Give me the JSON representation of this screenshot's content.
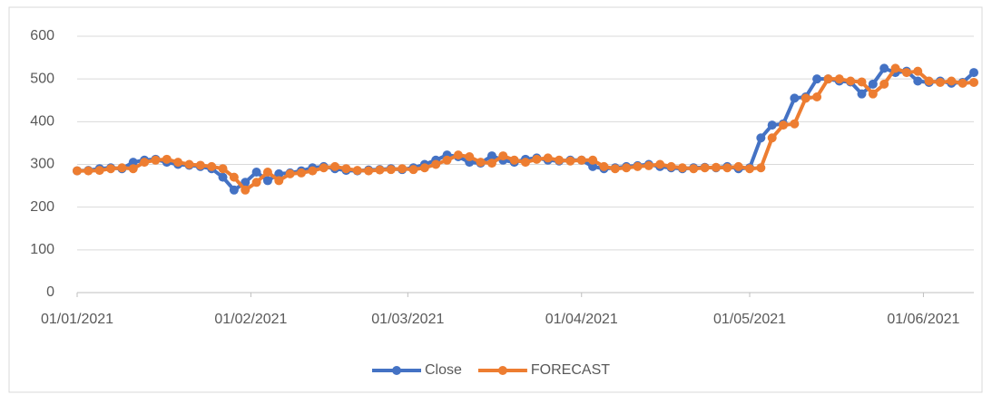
{
  "chart_data": {
    "type": "line",
    "x": [
      "2021-01-01",
      "2021-01-03",
      "2021-01-05",
      "2021-01-07",
      "2021-01-09",
      "2021-01-11",
      "2021-01-13",
      "2021-01-15",
      "2021-01-17",
      "2021-01-19",
      "2021-01-21",
      "2021-01-23",
      "2021-01-25",
      "2021-01-27",
      "2021-01-29",
      "2021-01-31",
      "2021-02-02",
      "2021-02-04",
      "2021-02-06",
      "2021-02-08",
      "2021-02-10",
      "2021-02-12",
      "2021-02-14",
      "2021-02-16",
      "2021-02-18",
      "2021-02-20",
      "2021-02-22",
      "2021-02-24",
      "2021-02-26",
      "2021-02-28",
      "2021-03-02",
      "2021-03-04",
      "2021-03-06",
      "2021-03-08",
      "2021-03-10",
      "2021-03-12",
      "2021-03-14",
      "2021-03-16",
      "2021-03-18",
      "2021-03-20",
      "2021-03-22",
      "2021-03-24",
      "2021-03-26",
      "2021-03-28",
      "2021-03-30",
      "2021-04-01",
      "2021-04-03",
      "2021-04-05",
      "2021-04-07",
      "2021-04-09",
      "2021-04-11",
      "2021-04-13",
      "2021-04-15",
      "2021-04-17",
      "2021-04-19",
      "2021-04-21",
      "2021-04-23",
      "2021-04-25",
      "2021-04-27",
      "2021-04-29",
      "2021-05-01",
      "2021-05-03",
      "2021-05-05",
      "2021-05-07",
      "2021-05-09",
      "2021-05-11",
      "2021-05-13",
      "2021-05-15",
      "2021-05-17",
      "2021-05-19",
      "2021-05-21",
      "2021-05-23",
      "2021-05-25",
      "2021-05-27",
      "2021-05-29",
      "2021-05-31",
      "2021-06-02",
      "2021-06-04",
      "2021-06-06",
      "2021-06-08",
      "2021-06-10"
    ],
    "series": [
      {
        "name": "Close",
        "color": "#4472c4",
        "values": [
          285,
          286,
          290,
          292,
          290,
          305,
          310,
          312,
          305,
          300,
          298,
          295,
          290,
          270,
          240,
          258,
          282,
          262,
          278,
          280,
          285,
          292,
          295,
          290,
          286,
          285,
          287,
          288,
          290,
          288,
          292,
          300,
          310,
          322,
          318,
          305,
          303,
          320,
          310,
          305,
          312,
          315,
          310,
          308,
          310,
          310,
          295,
          290,
          292,
          295,
          297,
          300,
          295,
          292,
          290,
          292,
          293,
          292,
          295,
          290,
          292,
          362,
          392,
          395,
          455,
          458,
          500,
          500,
          495,
          493,
          465,
          488,
          525,
          515,
          518,
          495,
          492,
          495,
          490,
          492,
          515
        ]
      },
      {
        "name": "FORECAST",
        "color": "#ed7d31",
        "values": [
          285,
          285,
          286,
          290,
          292,
          290,
          305,
          310,
          312,
          305,
          300,
          298,
          295,
          290,
          270,
          240,
          258,
          282,
          262,
          278,
          280,
          285,
          292,
          295,
          290,
          286,
          285,
          287,
          288,
          290,
          288,
          292,
          300,
          310,
          322,
          318,
          305,
          303,
          320,
          310,
          305,
          312,
          315,
          310,
          308,
          310,
          310,
          295,
          290,
          292,
          295,
          297,
          300,
          295,
          292,
          290,
          292,
          293,
          292,
          295,
          290,
          292,
          362,
          392,
          395,
          455,
          458,
          500,
          500,
          495,
          493,
          465,
          488,
          525,
          515,
          518,
          495,
          492,
          495,
          490,
          492
        ]
      }
    ],
    "xlim": [
      "2021-01-01",
      "2021-06-10"
    ],
    "xticks": [
      {
        "value": "2021-01-01",
        "label": "01/01/2021"
      },
      {
        "value": "2021-02-01",
        "label": "01/02/2021"
      },
      {
        "value": "2021-03-01",
        "label": "01/03/2021"
      },
      {
        "value": "2021-04-01",
        "label": "01/04/2021"
      },
      {
        "value": "2021-05-01",
        "label": "01/05/2021"
      },
      {
        "value": "2021-06-01",
        "label": "01/06/2021"
      }
    ],
    "ylim": [
      0,
      600
    ],
    "yticks": [
      0,
      100,
      200,
      300,
      400,
      500,
      600
    ],
    "grid": true,
    "legend": "bottom"
  }
}
